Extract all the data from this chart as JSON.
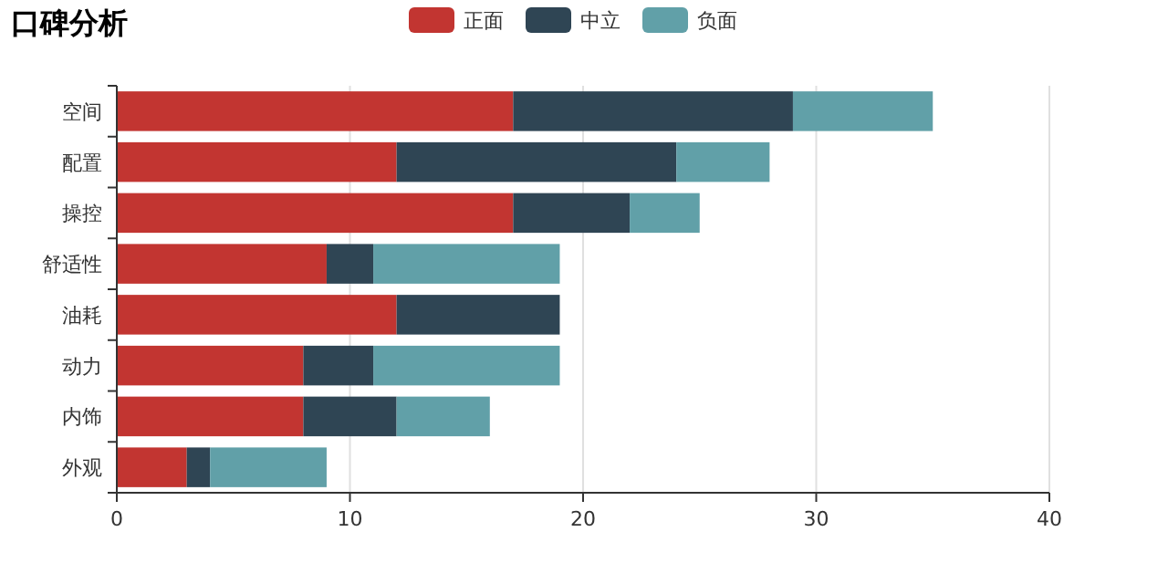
{
  "chart_data": {
    "type": "bar",
    "orientation": "horizontal",
    "stacked": true,
    "title": "口碑分析",
    "categories": [
      "空间",
      "配置",
      "操控",
      "舒适性",
      "油耗",
      "动力",
      "内饰",
      "外观"
    ],
    "series": [
      {
        "name": "正面",
        "color": "#c23531",
        "values": [
          17,
          12,
          17,
          9,
          12,
          8,
          8,
          3
        ]
      },
      {
        "name": "中立",
        "color": "#2f4554",
        "values": [
          12,
          12,
          5,
          2,
          7,
          3,
          4,
          1
        ]
      },
      {
        "name": "负面",
        "color": "#61a0a8",
        "values": [
          6,
          4,
          3,
          8,
          0,
          8,
          4,
          5
        ]
      }
    ],
    "xlim": [
      0,
      40
    ],
    "xticks": [
      0,
      10,
      20,
      30,
      40
    ],
    "grid": "x",
    "legend": "top"
  }
}
